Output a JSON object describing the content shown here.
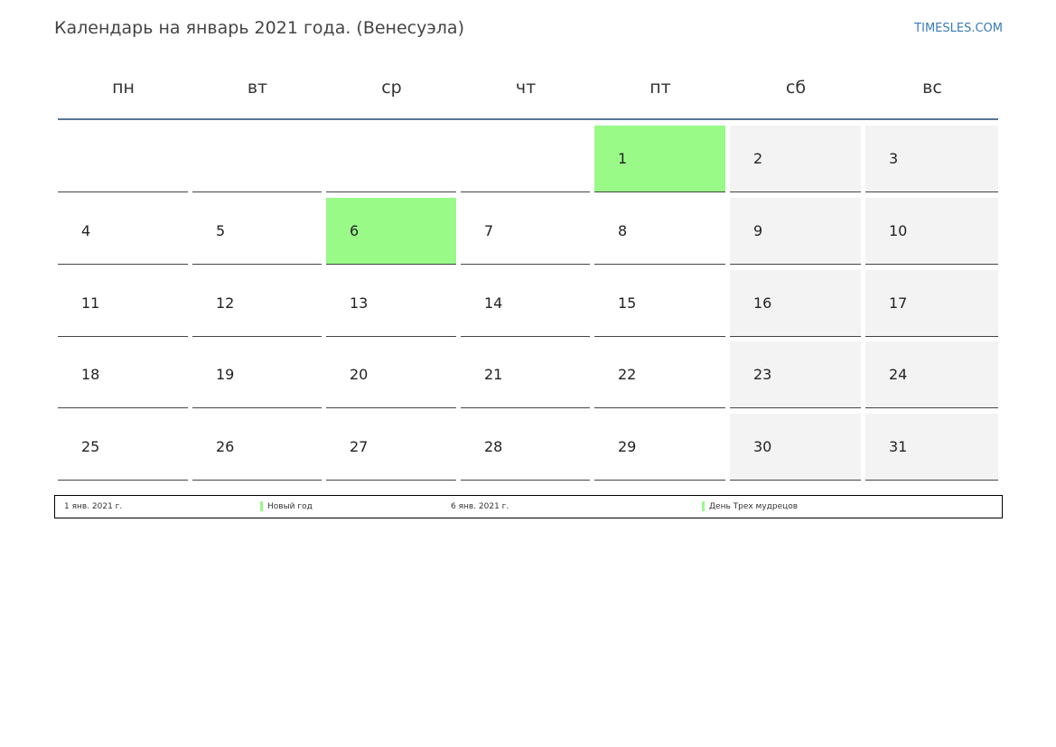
{
  "header": {
    "title": "Календарь на январь 2021 года. (Венесуэла)",
    "site": "TIMESLES.COM"
  },
  "weekdays": [
    "пн",
    "вт",
    "ср",
    "чт",
    "пт",
    "сб",
    "вс"
  ],
  "highlight_color": "#99fa88",
  "weekend_color": "#f3f3f3",
  "weeks": [
    [
      null,
      null,
      null,
      null,
      {
        "day": 1,
        "holiday": true
      },
      {
        "day": 2
      },
      {
        "day": 3
      }
    ],
    [
      {
        "day": 4
      },
      {
        "day": 5
      },
      {
        "day": 6,
        "holiday": true
      },
      {
        "day": 7
      },
      {
        "day": 8
      },
      {
        "day": 9
      },
      {
        "day": 10
      }
    ],
    [
      {
        "day": 11
      },
      {
        "day": 12
      },
      {
        "day": 13
      },
      {
        "day": 14
      },
      {
        "day": 15
      },
      {
        "day": 16
      },
      {
        "day": 17
      }
    ],
    [
      {
        "day": 18
      },
      {
        "day": 19
      },
      {
        "day": 20
      },
      {
        "day": 21
      },
      {
        "day": 22
      },
      {
        "day": 23
      },
      {
        "day": 24
      }
    ],
    [
      {
        "day": 25
      },
      {
        "day": 26
      },
      {
        "day": 27
      },
      {
        "day": 28
      },
      {
        "day": 29
      },
      {
        "day": 30
      },
      {
        "day": 31
      }
    ]
  ],
  "holidays": [
    {
      "date": "1 янв. 2021 г.",
      "name": "Новый год"
    },
    {
      "date": "6 янв. 2021 г.",
      "name": "День Трех мудрецов"
    }
  ]
}
